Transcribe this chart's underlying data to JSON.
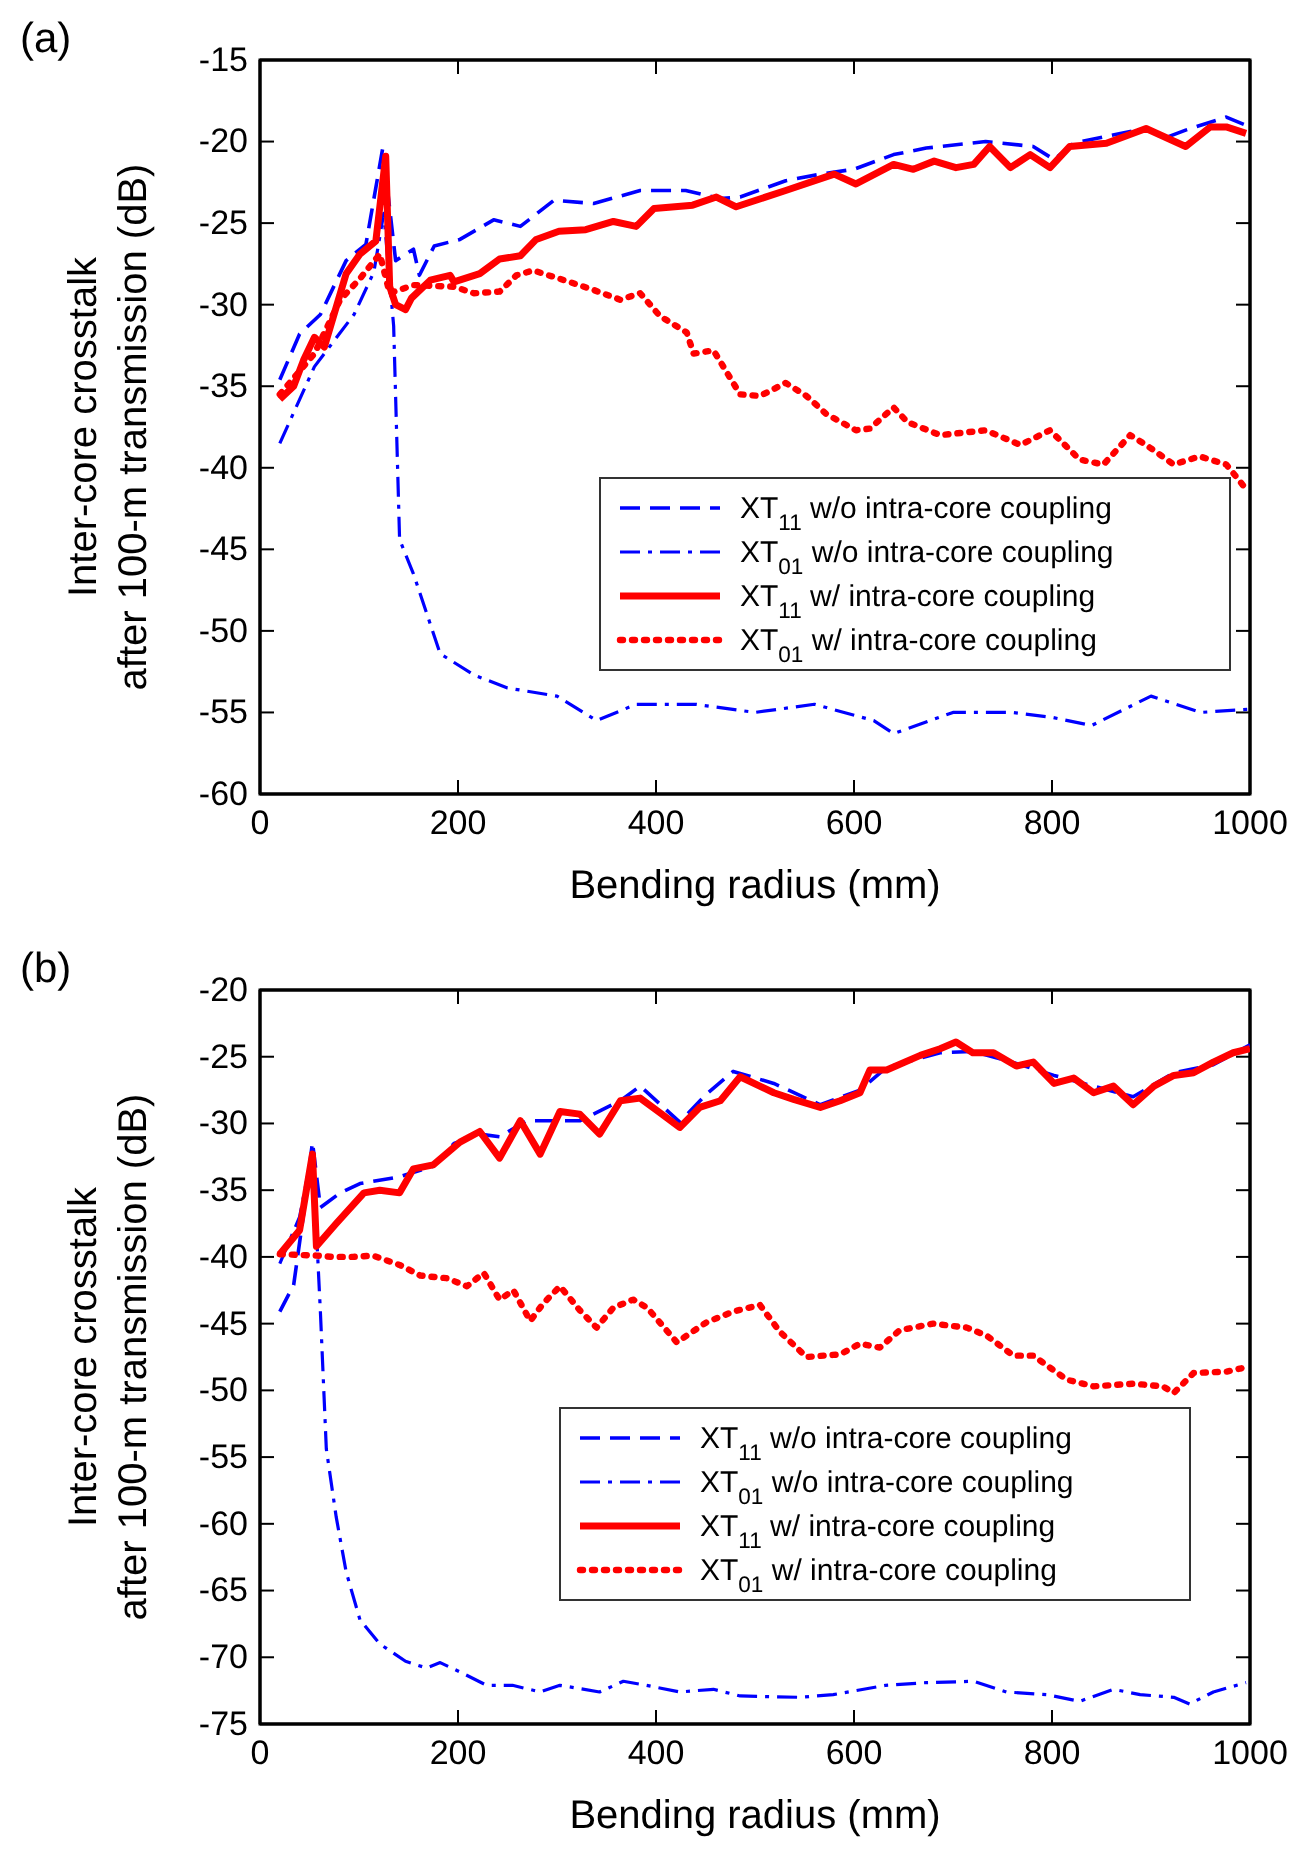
{
  "chart_data": [
    {
      "type": "line",
      "title": "(a)",
      "xlabel": "Bending radius (mm)",
      "ylabel": "Inter-core crosstalk\nafter 100-m transmission (dB)",
      "xlim": [
        0,
        1000
      ],
      "xticks": [
        0,
        200,
        400,
        600,
        800,
        1000
      ],
      "ylim": [
        -60,
        -15
      ],
      "yticks": [
        -60,
        -55,
        -50,
        -45,
        -40,
        -35,
        -30,
        -25,
        -20,
        -15
      ],
      "legend": "bottom right",
      "grid": false,
      "marker": "none",
      "series": [
        {
          "name": "XT$_{11}$ w/o intra-core coupling",
          "color": "#0000ff",
          "line_style": "dashed",
          "x": [
            20,
            40,
            61,
            87,
            107,
            124,
            137,
            155,
            161,
            176,
            202,
            236,
            263,
            297,
            337,
            384,
            430,
            465,
            485,
            531,
            566,
            600,
            640,
            673,
            733,
            781,
            802,
            822,
            869,
            895,
            913,
            935,
            976,
            996
          ],
          "values": [
            -34.6,
            -31.8,
            -30.6,
            -27.3,
            -26.3,
            -20.4,
            -27.3,
            -26.6,
            -28.2,
            -26.4,
            -26.0,
            -24.8,
            -25.2,
            -23.6,
            -23.8,
            -23.0,
            -23.0,
            -23.5,
            -23.4,
            -22.4,
            -22.0,
            -21.7,
            -20.8,
            -20.4,
            -20.0,
            -20.3,
            -21.1,
            -20.1,
            -19.5,
            -19.2,
            -19.8,
            -19.3,
            -18.5,
            -19.0
          ]
        },
        {
          "name": "XT$_{01}$ w/o intra-core coupling",
          "color": "#0000ff",
          "line_style": "dashdot",
          "x": [
            20,
            55,
            95,
            115,
            125,
            135,
            141,
            155,
            182,
            216,
            250,
            300,
            340,
            380,
            440,
            500,
            560,
            620,
            640,
            700,
            760,
            800,
            840,
            900,
            950,
            1000
          ],
          "values": [
            -38.5,
            -33.8,
            -30.6,
            -28.0,
            -24.4,
            -31.3,
            -44.4,
            -46.5,
            -51.4,
            -52.7,
            -53.5,
            -54.0,
            -55.5,
            -54.5,
            -54.5,
            -55.0,
            -54.5,
            -55.5,
            -56.3,
            -55.0,
            -55.0,
            -55.3,
            -55.8,
            -54.0,
            -55.0,
            -54.8
          ]
        },
        {
          "name": "XT$_{11}$ w/ intra-core coupling",
          "color": "#ff0000",
          "line_style": "solid",
          "x": [
            20,
            34,
            44,
            55,
            65,
            87,
            101,
            117,
            127,
            131,
            137,
            147,
            153,
            172,
            192,
            196,
            222,
            242,
            263,
            279,
            302,
            329,
            357,
            380,
            398,
            437,
            461,
            481,
            531,
            580,
            602,
            640,
            660,
            681,
            703,
            721,
            737,
            758,
            778,
            798,
            818,
            855,
            895,
            935,
            960,
            976,
            996
          ],
          "values": [
            -35.8,
            -35.0,
            -33.4,
            -32.0,
            -32.6,
            -28.1,
            -26.9,
            -26.1,
            -20.9,
            -28.9,
            -30.0,
            -30.3,
            -29.6,
            -28.5,
            -28.2,
            -28.6,
            -28.1,
            -27.2,
            -27.0,
            -26.0,
            -25.5,
            -25.4,
            -24.9,
            -25.2,
            -24.1,
            -23.9,
            -23.4,
            -24.0,
            -23.0,
            -22.0,
            -22.6,
            -21.4,
            -21.7,
            -21.2,
            -21.6,
            -21.4,
            -20.3,
            -21.6,
            -20.8,
            -21.6,
            -20.3,
            -20.1,
            -19.2,
            -20.3,
            -19.1,
            -19.1,
            -19.5
          ]
        },
        {
          "name": "XT$_{01}$ w/ intra-core coupling",
          "color": "#ff0000",
          "line_style": "dotted",
          "x": [
            20,
            55,
            81,
            101,
            121,
            131,
            155,
            196,
            216,
            242,
            259,
            276,
            302,
            337,
            364,
            384,
            404,
            431,
            438,
            458,
            485,
            505,
            531,
            552,
            572,
            602,
            616,
            640,
            654,
            687,
            733,
            768,
            798,
            828,
            852,
            879,
            895,
            923,
            949,
            976,
            996
          ],
          "values": [
            -35.5,
            -33.0,
            -29.7,
            -28.4,
            -26.9,
            -29.3,
            -28.8,
            -28.9,
            -29.3,
            -29.2,
            -28.2,
            -27.9,
            -28.4,
            -29.1,
            -29.7,
            -29.3,
            -30.7,
            -31.7,
            -33.0,
            -32.8,
            -35.5,
            -35.6,
            -34.8,
            -35.6,
            -36.7,
            -37.7,
            -37.6,
            -36.3,
            -37.2,
            -38.0,
            -37.7,
            -38.6,
            -37.7,
            -39.5,
            -39.8,
            -38.0,
            -38.6,
            -39.8,
            -39.3,
            -39.8,
            -41.3
          ]
        }
      ]
    },
    {
      "type": "line",
      "title": "(b)",
      "xlabel": "Bending radius (mm)",
      "ylabel": "Inter-core crosstalk\nafter 100-m transmission (dB)",
      "xlim": [
        0,
        1000
      ],
      "xticks": [
        0,
        200,
        400,
        600,
        800,
        1000
      ],
      "ylim": [
        -75,
        -20
      ],
      "yticks": [
        -75,
        -70,
        -65,
        -60,
        -55,
        -50,
        -45,
        -40,
        -35,
        -30,
        -25,
        -20
      ],
      "legend": "bottom",
      "grid": false,
      "marker": "none",
      "series": [
        {
          "name": "XT$_{11}$ w/o intra-core coupling",
          "color": "#0000ff",
          "line_style": "dashed",
          "x": [
            20,
            34,
            44,
            53,
            61,
            81,
            101,
            141,
            175,
            196,
            222,
            242,
            269,
            323,
            364,
            384,
            424,
            451,
            478,
            519,
            566,
            606,
            633,
            687,
            720,
            764,
            802,
            842,
            882,
            923,
            963,
            1000
          ],
          "values": [
            -44.1,
            -42.1,
            -36.8,
            -31.4,
            -36.3,
            -35.2,
            -34.5,
            -34.0,
            -33.2,
            -31.5,
            -30.8,
            -31.0,
            -29.8,
            -29.8,
            -28.3,
            -27.2,
            -29.9,
            -27.8,
            -26.1,
            -27.0,
            -28.6,
            -27.5,
            -25.8,
            -24.7,
            -24.6,
            -25.5,
            -26.4,
            -27.2,
            -28.0,
            -26.2,
            -25.6,
            -24.1
          ]
        },
        {
          "name": "XT$_{01}$ w/o intra-core coupling",
          "color": "#0000ff",
          "line_style": "dashdot",
          "x": [
            20,
            40,
            53,
            61,
            67,
            77,
            87,
            101,
            121,
            147,
            168,
            182,
            202,
            229,
            255,
            283,
            303,
            343,
            367,
            390,
            424,
            458,
            485,
            545,
            579,
            632,
            673,
            721,
            754,
            795,
            828,
            862,
            889,
            923,
            939,
            963,
            996
          ],
          "values": [
            -40.5,
            -37.0,
            -32.0,
            -44.1,
            -54.4,
            -59.5,
            -63.6,
            -67.2,
            -69.0,
            -70.3,
            -70.8,
            -70.4,
            -71.1,
            -72.1,
            -72.1,
            -72.6,
            -72.1,
            -72.6,
            -71.8,
            -72.1,
            -72.6,
            -72.4,
            -72.9,
            -73.0,
            -72.8,
            -72.1,
            -71.9,
            -71.8,
            -72.6,
            -72.8,
            -73.3,
            -72.4,
            -72.8,
            -73.0,
            -73.5,
            -72.6,
            -71.9
          ]
        },
        {
          "name": "XT$_{11}$ w/ intra-core coupling",
          "color": "#ff0000",
          "line_style": "solid",
          "x": [
            20,
            40,
            53,
            57,
            77,
            105,
            121,
            141,
            155,
            175,
            202,
            222,
            242,
            263,
            283,
            303,
            323,
            343,
            364,
            384,
            404,
            424,
            444,
            465,
            485,
            519,
            539,
            566,
            586,
            606,
            616,
            633,
            667,
            687,
            703,
            720,
            741,
            764,
            781,
            802,
            822,
            842,
            862,
            882,
            903,
            923,
            943,
            963,
            983,
            1000
          ],
          "values": [
            -39.8,
            -38.0,
            -32.3,
            -39.2,
            -37.5,
            -35.2,
            -35.0,
            -35.2,
            -33.4,
            -33.1,
            -31.4,
            -30.6,
            -32.6,
            -29.8,
            -32.3,
            -29.1,
            -29.3,
            -30.8,
            -28.3,
            -28.1,
            -29.2,
            -30.3,
            -28.8,
            -28.3,
            -26.5,
            -27.7,
            -28.2,
            -28.8,
            -28.3,
            -27.7,
            -26.0,
            -26.0,
            -24.9,
            -24.4,
            -23.9,
            -24.7,
            -24.7,
            -25.7,
            -25.4,
            -27.0,
            -26.6,
            -27.7,
            -27.2,
            -28.6,
            -27.2,
            -26.4,
            -26.2,
            -25.4,
            -24.7,
            -24.4
          ]
        },
        {
          "name": "XT$_{01}$ w/ intra-core coupling",
          "color": "#ff0000",
          "line_style": "dotted",
          "x": [
            20,
            57,
            74,
            94,
            114,
            141,
            162,
            189,
            209,
            226,
            242,
            256,
            273,
            286,
            303,
            323,
            340,
            357,
            377,
            391,
            421,
            451,
            478,
            505,
            525,
            552,
            586,
            606,
            626,
            646,
            680,
            714,
            734,
            761,
            781,
            815,
            842,
            882,
            912,
            923,
            943,
            976,
            1000
          ],
          "values": [
            -39.8,
            -39.9,
            -40.0,
            -40.0,
            -39.9,
            -40.6,
            -41.4,
            -41.6,
            -42.2,
            -41.2,
            -43.2,
            -42.5,
            -44.8,
            -43.5,
            -42.2,
            -44.0,
            -45.3,
            -43.8,
            -43.2,
            -43.8,
            -46.4,
            -44.9,
            -44.1,
            -43.6,
            -45.6,
            -47.5,
            -47.3,
            -46.5,
            -46.8,
            -45.5,
            -45.0,
            -45.3,
            -45.9,
            -47.4,
            -47.4,
            -49.2,
            -49.7,
            -49.5,
            -49.7,
            -50.2,
            -48.7,
            -48.6,
            -48.2
          ]
        }
      ]
    }
  ]
}
